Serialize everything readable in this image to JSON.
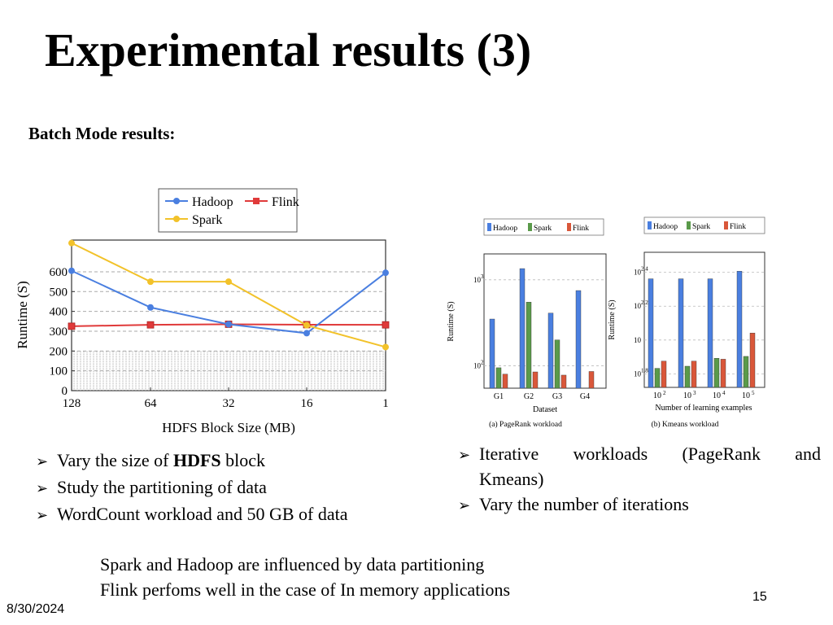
{
  "slide": {
    "title": "Experimental results (3)",
    "subtitle": "Batch Mode results:",
    "page_number": "15",
    "date": "8/30/2024"
  },
  "left_bullets": {
    "b1_pre": "Vary the size of ",
    "b1_bold": "HDFS",
    "b1_post": " block",
    "b2": "Study the partitioning of data",
    "b3": "WordCount workload and 50 GB of data"
  },
  "right_bullets": {
    "b1_words": [
      "Iterative",
      "workloads",
      "(PageRank",
      "and"
    ],
    "b1_line2": "Kmeans)",
    "b2": "Vary the number of iterations"
  },
  "conclusion": {
    "line1": "Spark and Hadoop are influenced by data partitioning",
    "line2": "Flink perfoms well in the case of In memory applications"
  },
  "colors": {
    "hadoop": "#4a7fe0",
    "flink": "#e03a3a",
    "spark": "#f2c22a",
    "bar_hadoop": "#4a7fe0",
    "bar_spark": "#5a9a4a",
    "bar_flink": "#d9573a"
  },
  "chart_data": [
    {
      "type": "line",
      "xlabel": "HDFS Block Size (MB)",
      "ylabel": "Runtime (S)",
      "categories": [
        "128",
        "64",
        "32",
        "16",
        "1"
      ],
      "yticks": [
        0,
        100,
        200,
        300,
        400,
        500,
        600
      ],
      "ylim": [
        0,
        760
      ],
      "legend_placement": "top",
      "series": [
        {
          "name": "Hadoop",
          "values": [
            605,
            420,
            335,
            290,
            595
          ]
        },
        {
          "name": "Flink",
          "values": [
            325,
            332,
            335,
            333,
            332
          ]
        },
        {
          "name": "Spark",
          "values": [
            745,
            550,
            550,
            330,
            220
          ]
        }
      ]
    },
    {
      "type": "bar",
      "caption": "(a) PageRank workload",
      "xlabel": "Dataset",
      "ylabel": "Runtime (S)",
      "log_scale": true,
      "ytick_labels": [
        "10",
        "10"
      ],
      "ytick_exponents": [
        "3",
        "2"
      ],
      "categories": [
        "G1",
        "G2",
        "G3",
        "G4"
      ],
      "series": [
        {
          "name": "Hadoop",
          "values": [
            350,
            1350,
            410,
            750
          ]
        },
        {
          "name": "Spark",
          "values": [
            95,
            550,
            200,
            null
          ]
        },
        {
          "name": "Flink",
          "values": [
            80,
            85,
            78,
            86
          ]
        }
      ]
    },
    {
      "type": "bar",
      "caption": "(b) Kmeans workload",
      "xlabel": "Number of learning examples",
      "ylabel": "Runtime (S)",
      "log_scale": true,
      "ytick_labels": [
        "10",
        "10",
        "10",
        "10"
      ],
      "ytick_exponents": [
        "2.4",
        "2.2",
        "",
        "1.8"
      ],
      "categories": [
        "10",
        "10",
        "10",
        "10"
      ],
      "category_exponents": [
        "2",
        "3",
        "4",
        "5"
      ],
      "series": [
        {
          "name": "Hadoop",
          "values": [
            230,
            230,
            230,
            255
          ]
        },
        {
          "name": "Spark",
          "values": [
            68,
            70,
            78,
            80
          ]
        },
        {
          "name": "Flink",
          "values": [
            75,
            75,
            77,
            110
          ]
        }
      ]
    }
  ]
}
